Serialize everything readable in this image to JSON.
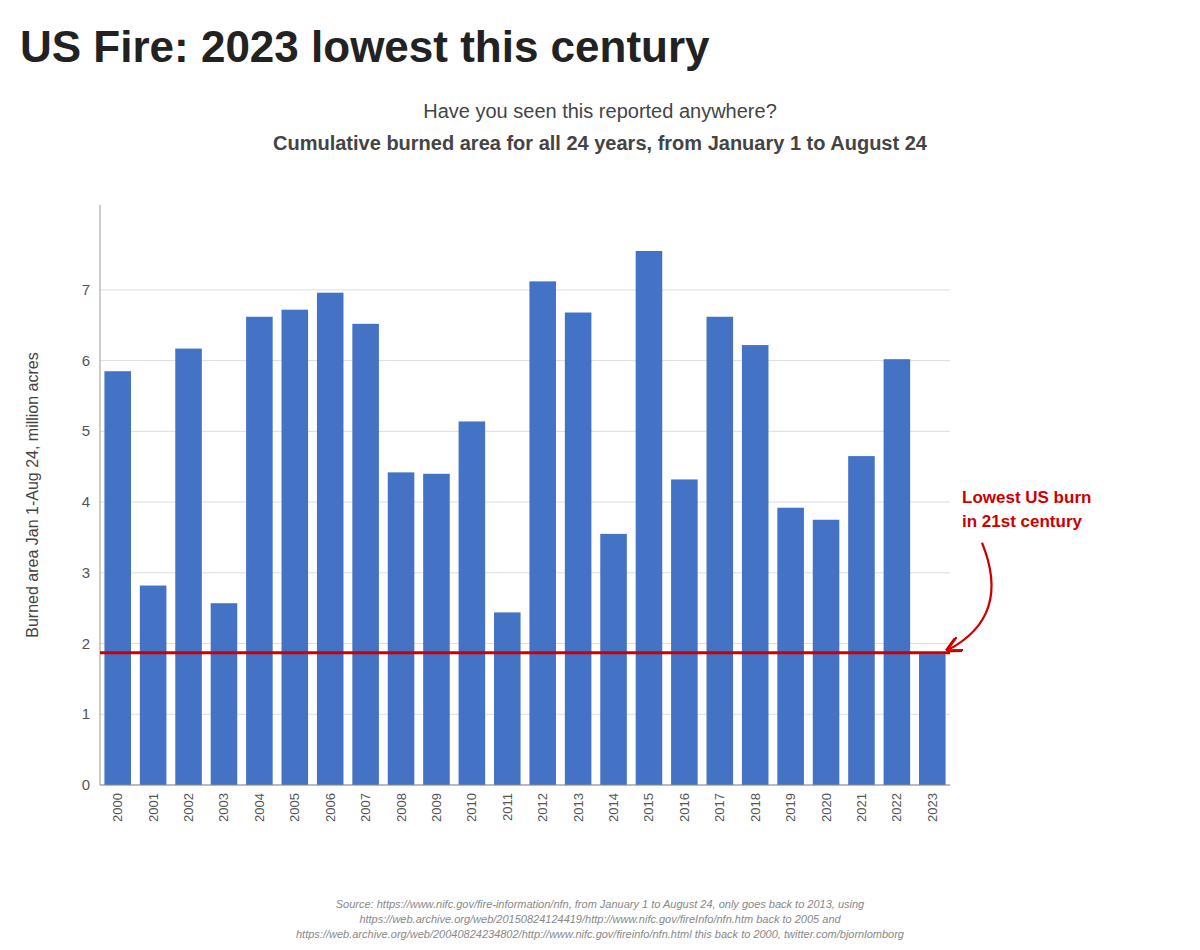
{
  "chart_data": {
    "type": "bar",
    "title": "US Fire: 2023 lowest this century",
    "subtitle": [
      "Have you seen this reported anywhere?",
      "Cumulative burned area for all 24 years, from January 1 to August 24"
    ],
    "y_label": "Burned area Jan 1-Aug 24, million acres",
    "categories": [
      "2000",
      "2001",
      "2002",
      "2003",
      "2004",
      "2005",
      "2006",
      "2007",
      "2008",
      "2009",
      "2010",
      "2011",
      "2012",
      "2013",
      "2014",
      "2015",
      "2016",
      "2017",
      "2018",
      "2019",
      "2020",
      "2021",
      "2022",
      "2023"
    ],
    "values": [
      5.85,
      2.82,
      6.17,
      2.57,
      6.62,
      6.72,
      6.96,
      6.52,
      4.42,
      4.4,
      5.14,
      2.44,
      7.12,
      6.68,
      3.55,
      7.55,
      4.32,
      6.62,
      6.22,
      3.92,
      3.75,
      4.65,
      6.02,
      1.85
    ],
    "color": "#4472C4",
    "ref_line": {
      "value": 1.87,
      "color": "#CC0000"
    },
    "annotations": [
      "Lowest US burn",
      "in 21st century"
    ],
    "annotation_color": "#CC0000",
    "source": "Source: https://www.nifc.gov/fire-information/nfn, from January 1 to August 24, only goes back to 2013, using\nhttps://web.archive.org/web/20150824124419/http://www.nifc.gov/fireInfo/nfn.htm back to 2005 and\nhttps://web.archive.org/web/20040824234802/http://www.nifc.gov/fireinfo/nfn.html this back to 2000, twitter.com/bjornlomborg",
    "ylim": [
      0,
      8.2
    ],
    "yticks": [
      0,
      1,
      2,
      3,
      4,
      5,
      6,
      7
    ],
    "grid": true
  }
}
